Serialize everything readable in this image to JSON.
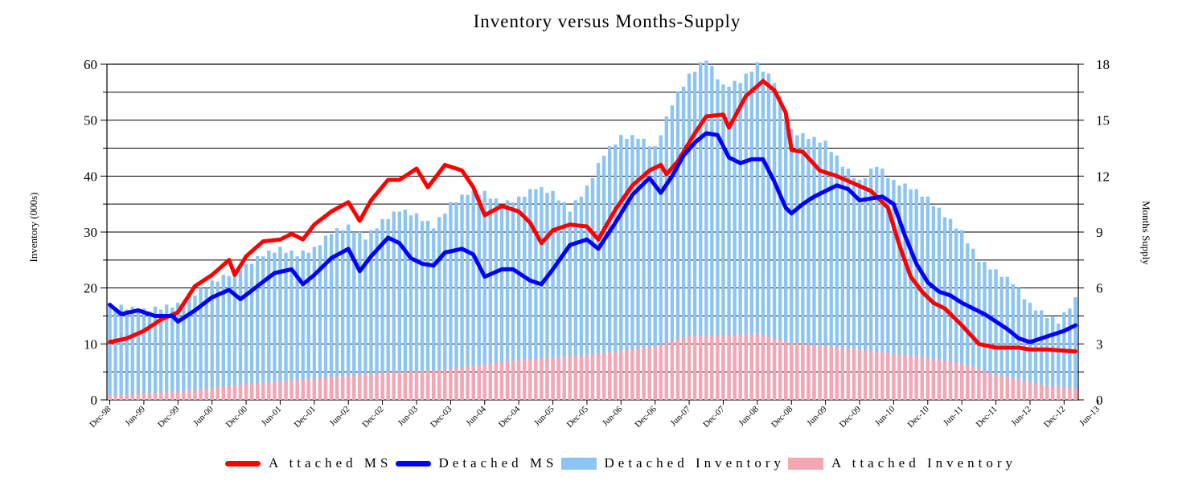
{
  "chart_data": {
    "type": "bar",
    "title": "Inventory versus Months-Supply",
    "ylabel": "Inventory (000s)",
    "ylabel_right": "Months Supply",
    "ylim": [
      0,
      60
    ],
    "y2lim": [
      0,
      18
    ],
    "yticks": [
      "0",
      "10",
      "20",
      "30",
      "40",
      "50",
      "60"
    ],
    "y2ticks": [
      "0",
      "3",
      "6",
      "9",
      "12",
      "15",
      "18"
    ],
    "x_tick_labels": [
      "Dec-98",
      "Jun-99",
      "Dec-99",
      "Jun-00",
      "Dec-00",
      "Jun-01",
      "Dec-01",
      "Jun-02",
      "Dec-02",
      "Jun-03",
      "Dec-03",
      "Jun-04",
      "Dec-04",
      "Jun-05",
      "Dec-05",
      "Jun-06",
      "Dec-06",
      "Jun-07",
      "Dec-07",
      "Jun-08",
      "Dec-08",
      "Jun-09",
      "Dec-09",
      "Jun-10",
      "Dec-10",
      "Jun-11",
      "Dec-11",
      "Jun-12",
      "Dec-12",
      "Jun-13"
    ],
    "grid": true,
    "legend": "bottom",
    "colors": {
      "attached_ms": "#ff0000",
      "detached_ms": "#0000ff",
      "detached_inventory": "#8cc4f4",
      "attached_inventory": "#f4a6b2"
    },
    "series": [
      {
        "name": "Detached Inventory",
        "type": "bar",
        "axis": "left",
        "anchors": [
          [
            0,
            17
          ],
          [
            3,
            16.5
          ],
          [
            6,
            16
          ],
          [
            9,
            16.5
          ],
          [
            12,
            17
          ],
          [
            15,
            19
          ],
          [
            18,
            21
          ],
          [
            21,
            22.5
          ],
          [
            24,
            24
          ],
          [
            27,
            26
          ],
          [
            30,
            27
          ],
          [
            33,
            26
          ],
          [
            36,
            27
          ],
          [
            39,
            30
          ],
          [
            42,
            31
          ],
          [
            45,
            29
          ],
          [
            48,
            32
          ],
          [
            51,
            34
          ],
          [
            54,
            33
          ],
          [
            57,
            31
          ],
          [
            60,
            35
          ],
          [
            63,
            37
          ],
          [
            66,
            37
          ],
          [
            69,
            35
          ],
          [
            72,
            36
          ],
          [
            75,
            38
          ],
          [
            78,
            37
          ],
          [
            81,
            34
          ],
          [
            84,
            38
          ],
          [
            87,
            44
          ],
          [
            90,
            47
          ],
          [
            93,
            47
          ],
          [
            96,
            45
          ],
          [
            99,
            53
          ],
          [
            102,
            58
          ],
          [
            105,
            61
          ],
          [
            108,
            56
          ],
          [
            111,
            57
          ],
          [
            114,
            60
          ],
          [
            117,
            57
          ],
          [
            120,
            48
          ],
          [
            123,
            47
          ],
          [
            126,
            46
          ],
          [
            129,
            42
          ],
          [
            132,
            39
          ],
          [
            135,
            42
          ],
          [
            138,
            39
          ],
          [
            141,
            38
          ],
          [
            144,
            36
          ],
          [
            147,
            33
          ],
          [
            150,
            30
          ],
          [
            153,
            25
          ],
          [
            156,
            23
          ],
          [
            159,
            21
          ],
          [
            162,
            17
          ],
          [
            165,
            15
          ],
          [
            167,
            14
          ],
          [
            170,
            18
          ]
        ]
      },
      {
        "name": "Attached Inventory",
        "type": "bar",
        "axis": "left",
        "anchors": [
          [
            0,
            0.8
          ],
          [
            12,
            1.5
          ],
          [
            24,
            2.8
          ],
          [
            36,
            3.8
          ],
          [
            48,
            4.8
          ],
          [
            60,
            5.5
          ],
          [
            72,
            7.2
          ],
          [
            84,
            8
          ],
          [
            96,
            9.5
          ],
          [
            102,
            11.5
          ],
          [
            108,
            11.5
          ],
          [
            114,
            11.8
          ],
          [
            120,
            10.2
          ],
          [
            132,
            9
          ],
          [
            144,
            7.5
          ],
          [
            150,
            6.5
          ],
          [
            156,
            4.5
          ],
          [
            162,
            3.2
          ],
          [
            165,
            2.5
          ],
          [
            170,
            2.2
          ]
        ]
      },
      {
        "name": "Attached MS",
        "type": "line",
        "axis": "right",
        "anchors": [
          [
            0,
            3.1
          ],
          [
            3,
            3.3
          ],
          [
            6,
            3.7
          ],
          [
            9,
            4.3
          ],
          [
            12,
            4.7
          ],
          [
            15,
            6.1
          ],
          [
            18,
            6.7
          ],
          [
            21,
            7.5
          ],
          [
            22,
            6.7
          ],
          [
            24,
            7.7
          ],
          [
            27,
            8.5
          ],
          [
            30,
            8.6
          ],
          [
            32,
            8.9
          ],
          [
            34,
            8.6
          ],
          [
            36,
            9.4
          ],
          [
            39,
            10.1
          ],
          [
            42,
            10.6
          ],
          [
            44,
            9.6
          ],
          [
            46,
            10.7
          ],
          [
            49,
            11.8
          ],
          [
            51,
            11.8
          ],
          [
            54,
            12.4
          ],
          [
            56,
            11.4
          ],
          [
            59,
            12.6
          ],
          [
            62,
            12.3
          ],
          [
            64,
            11.4
          ],
          [
            66,
            9.9
          ],
          [
            69,
            10.4
          ],
          [
            72,
            10.1
          ],
          [
            74,
            9.5
          ],
          [
            76,
            8.4
          ],
          [
            78,
            9.1
          ],
          [
            81,
            9.4
          ],
          [
            84,
            9.3
          ],
          [
            86,
            8.6
          ],
          [
            89,
            10.2
          ],
          [
            92,
            11.5
          ],
          [
            95,
            12.3
          ],
          [
            97,
            12.6
          ],
          [
            98,
            12.1
          ],
          [
            100,
            12.8
          ],
          [
            103,
            14.3
          ],
          [
            105,
            15.2
          ],
          [
            108,
            15.3
          ],
          [
            109,
            14.6
          ],
          [
            112,
            16.3
          ],
          [
            115,
            17.1
          ],
          [
            117,
            16.6
          ],
          [
            119,
            15.4
          ],
          [
            120,
            13.4
          ],
          [
            122,
            13.3
          ],
          [
            125,
            12.3
          ],
          [
            128,
            12.0
          ],
          [
            131,
            11.6
          ],
          [
            134,
            11.2
          ],
          [
            137,
            10.3
          ],
          [
            139,
            8.3
          ],
          [
            141,
            6.6
          ],
          [
            143,
            5.8
          ],
          [
            145,
            5.2
          ],
          [
            147,
            4.9
          ],
          [
            150,
            4.0
          ],
          [
            153,
            3.0
          ],
          [
            156,
            2.8
          ],
          [
            158,
            2.8
          ],
          [
            160,
            2.8
          ],
          [
            162,
            2.7
          ],
          [
            165,
            2.7
          ],
          [
            170,
            2.6
          ]
        ]
      },
      {
        "name": "Detached MS",
        "type": "line",
        "axis": "right",
        "anchors": [
          [
            0,
            5.1
          ],
          [
            2,
            4.6
          ],
          [
            5,
            4.8
          ],
          [
            8,
            4.5
          ],
          [
            11,
            4.5
          ],
          [
            12,
            4.2
          ],
          [
            15,
            4.8
          ],
          [
            18,
            5.5
          ],
          [
            21,
            5.9
          ],
          [
            23,
            5.4
          ],
          [
            26,
            6.1
          ],
          [
            29,
            6.8
          ],
          [
            32,
            7.0
          ],
          [
            34,
            6.2
          ],
          [
            36,
            6.7
          ],
          [
            39,
            7.6
          ],
          [
            42,
            8.1
          ],
          [
            44,
            6.9
          ],
          [
            46,
            7.7
          ],
          [
            49,
            8.7
          ],
          [
            51,
            8.4
          ],
          [
            53,
            7.6
          ],
          [
            55,
            7.3
          ],
          [
            57,
            7.2
          ],
          [
            59,
            7.9
          ],
          [
            62,
            8.1
          ],
          [
            64,
            7.8
          ],
          [
            66,
            6.6
          ],
          [
            69,
            7.0
          ],
          [
            71,
            7.0
          ],
          [
            74,
            6.4
          ],
          [
            76,
            6.2
          ],
          [
            78,
            7.0
          ],
          [
            81,
            8.3
          ],
          [
            84,
            8.6
          ],
          [
            86,
            8.1
          ],
          [
            89,
            9.5
          ],
          [
            92,
            11.0
          ],
          [
            95,
            11.9
          ],
          [
            97,
            11.1
          ],
          [
            99,
            12.0
          ],
          [
            101,
            13.1
          ],
          [
            103,
            13.8
          ],
          [
            105,
            14.3
          ],
          [
            107,
            14.2
          ],
          [
            109,
            13.0
          ],
          [
            111,
            12.7
          ],
          [
            113,
            12.9
          ],
          [
            115,
            12.9
          ],
          [
            117,
            11.7
          ],
          [
            119,
            10.3
          ],
          [
            120,
            10.0
          ],
          [
            122,
            10.5
          ],
          [
            124,
            10.9
          ],
          [
            126,
            11.2
          ],
          [
            128,
            11.5
          ],
          [
            130,
            11.3
          ],
          [
            132,
            10.7
          ],
          [
            134,
            10.8
          ],
          [
            136,
            10.9
          ],
          [
            138,
            10.5
          ],
          [
            140,
            8.8
          ],
          [
            142,
            7.3
          ],
          [
            144,
            6.3
          ],
          [
            146,
            5.8
          ],
          [
            148,
            5.6
          ],
          [
            150,
            5.2
          ],
          [
            152,
            4.9
          ],
          [
            154,
            4.6
          ],
          [
            156,
            4.2
          ],
          [
            158,
            3.8
          ],
          [
            160,
            3.3
          ],
          [
            162,
            3.1
          ],
          [
            165,
            3.4
          ],
          [
            168,
            3.7
          ],
          [
            170,
            4.0
          ]
        ]
      }
    ],
    "legend_labels": [
      "Attached MS",
      "Detached MS",
      "Detached Inventory",
      "Attached Inventory"
    ],
    "legend_display": [
      "A ttached MS",
      "Detached MS",
      "Detached Inventory",
      "A ttached Inventory"
    ]
  }
}
